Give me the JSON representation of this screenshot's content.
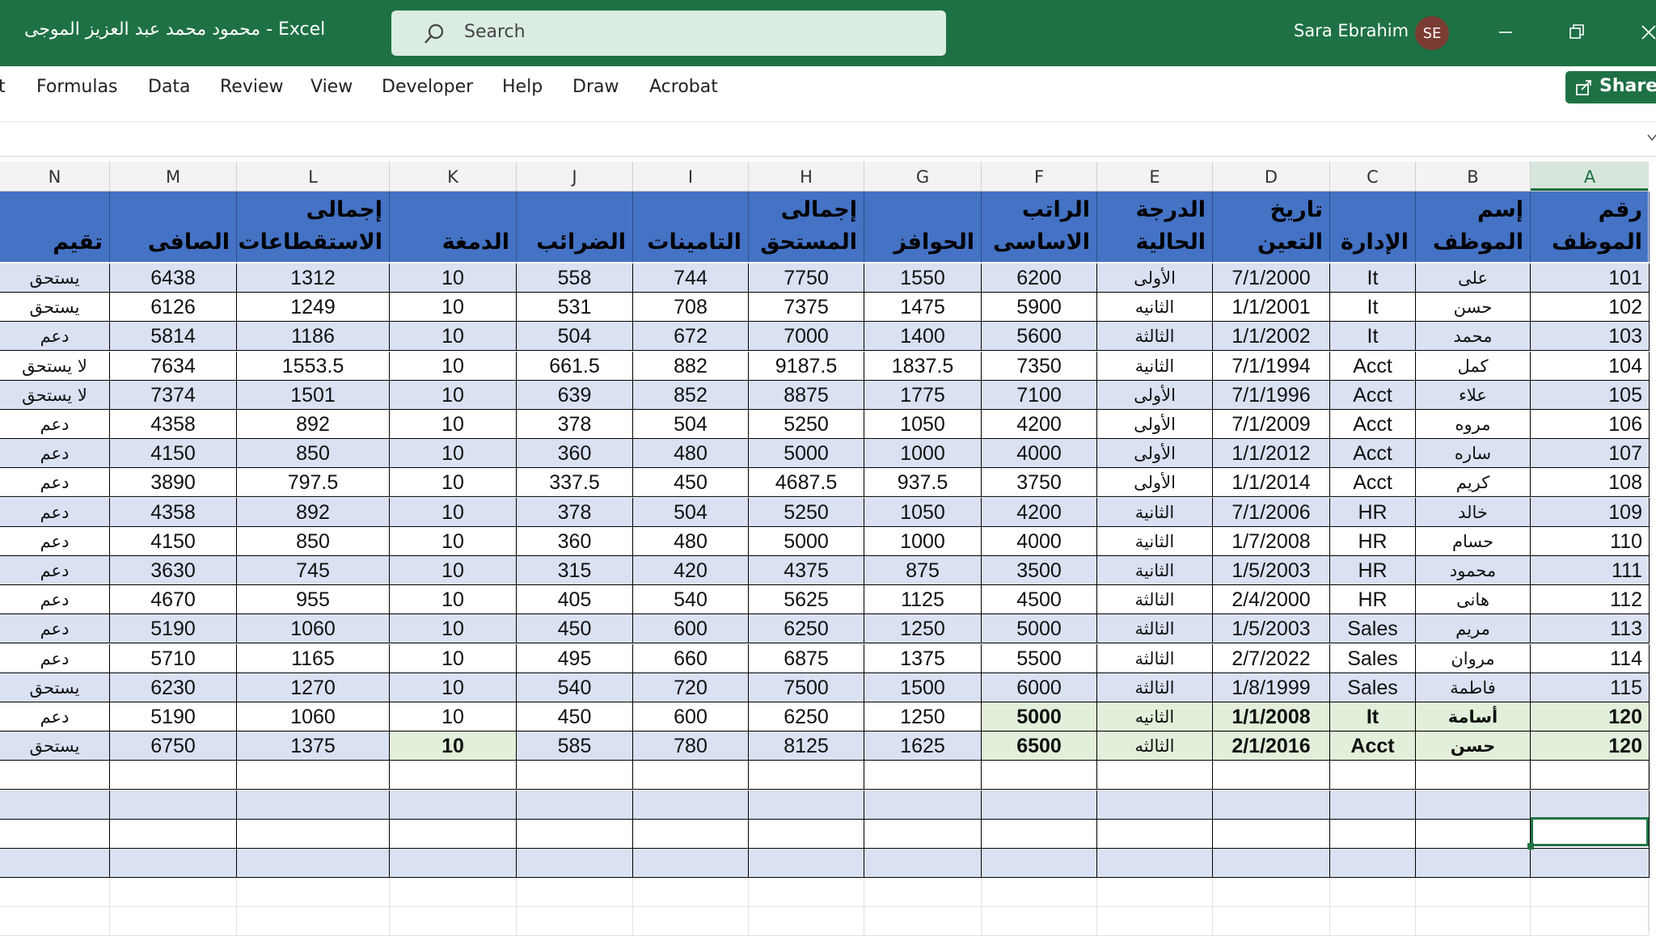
{
  "window": {
    "doc_title": "محمود محمد عبد العزيز الموجى  -  Excel",
    "search_placeholder": "Search",
    "user_name": "Sara Ebrahim",
    "user_initials": "SE"
  },
  "ribbon": {
    "tabs": [
      "t",
      "Formulas",
      "Data",
      "Review",
      "View",
      "Developer",
      "Help",
      "Draw",
      "Acrobat"
    ],
    "share_label": "Share"
  },
  "columns": [
    "N",
    "M",
    "L",
    "K",
    "J",
    "I",
    "H",
    "G",
    "F",
    "E",
    "D",
    "C",
    "B",
    "A"
  ],
  "selected_column": "A",
  "headers": {
    "A": [
      "رقم",
      "الموظف"
    ],
    "B": [
      "إسم",
      "الموظف"
    ],
    "C": [
      "",
      "الإدارة"
    ],
    "D": [
      "تاريخ",
      "التعين"
    ],
    "E": [
      "الدرجة",
      "الحالية"
    ],
    "F": [
      "الراتب",
      "الاساسى"
    ],
    "G": [
      "",
      "الحوافز"
    ],
    "H": [
      "إجمالى",
      "المستحق"
    ],
    "I": [
      "",
      "التامينات"
    ],
    "J": [
      "",
      "الضرائب"
    ],
    "K": [
      "",
      "الدمغة"
    ],
    "L": [
      "إجمالى",
      "الاستقطاعات"
    ],
    "M": [
      "",
      "الصافى"
    ],
    "N": [
      "",
      "تقيم"
    ]
  },
  "rows": [
    {
      "A": "101",
      "B": "على",
      "C": "It",
      "D": "7/1/2000",
      "E": "الأولى",
      "F": "6200",
      "G": "1550",
      "H": "7750",
      "I": "744",
      "J": "558",
      "K": "10",
      "L": "1312",
      "M": "6438",
      "N": "يستحق"
    },
    {
      "A": "102",
      "B": "حسن",
      "C": "It",
      "D": "1/1/2001",
      "E": "الثانيه",
      "F": "5900",
      "G": "1475",
      "H": "7375",
      "I": "708",
      "J": "531",
      "K": "10",
      "L": "1249",
      "M": "6126",
      "N": "يستحق"
    },
    {
      "A": "103",
      "B": "محمد",
      "C": "It",
      "D": "1/1/2002",
      "E": "الثالثة",
      "F": "5600",
      "G": "1400",
      "H": "7000",
      "I": "672",
      "J": "504",
      "K": "10",
      "L": "1186",
      "M": "5814",
      "N": "دعم"
    },
    {
      "A": "104",
      "B": "كمل",
      "C": "Acct",
      "D": "7/1/1994",
      "E": "الثانية",
      "F": "7350",
      "G": "1837.5",
      "H": "9187.5",
      "I": "882",
      "J": "661.5",
      "K": "10",
      "L": "1553.5",
      "M": "7634",
      "N": "لا يستحق"
    },
    {
      "A": "105",
      "B": "علاء",
      "C": "Acct",
      "D": "7/1/1996",
      "E": "الأولى",
      "F": "7100",
      "G": "1775",
      "H": "8875",
      "I": "852",
      "J": "639",
      "K": "10",
      "L": "1501",
      "M": "7374",
      "N": "لا يستحق"
    },
    {
      "A": "106",
      "B": "مروه",
      "C": "Acct",
      "D": "7/1/2009",
      "E": "الأولى",
      "F": "4200",
      "G": "1050",
      "H": "5250",
      "I": "504",
      "J": "378",
      "K": "10",
      "L": "892",
      "M": "4358",
      "N": "دعم"
    },
    {
      "A": "107",
      "B": "ساره",
      "C": "Acct",
      "D": "1/1/2012",
      "E": "الأولى",
      "F": "4000",
      "G": "1000",
      "H": "5000",
      "I": "480",
      "J": "360",
      "K": "10",
      "L": "850",
      "M": "4150",
      "N": "دعم"
    },
    {
      "A": "108",
      "B": "كريم",
      "C": "Acct",
      "D": "1/1/2014",
      "E": "الأولى",
      "F": "3750",
      "G": "937.5",
      "H": "4687.5",
      "I": "450",
      "J": "337.5",
      "K": "10",
      "L": "797.5",
      "M": "3890",
      "N": "دعم"
    },
    {
      "A": "109",
      "B": "خالد",
      "C": "HR",
      "D": "7/1/2006",
      "E": "الثانية",
      "F": "4200",
      "G": "1050",
      "H": "5250",
      "I": "504",
      "J": "378",
      "K": "10",
      "L": "892",
      "M": "4358",
      "N": "دعم"
    },
    {
      "A": "110",
      "B": "حسام",
      "C": "HR",
      "D": "1/7/2008",
      "E": "الثانية",
      "F": "4000",
      "G": "1000",
      "H": "5000",
      "I": "480",
      "J": "360",
      "K": "10",
      "L": "850",
      "M": "4150",
      "N": "دعم"
    },
    {
      "A": "111",
      "B": "محمود",
      "C": "HR",
      "D": "1/5/2003",
      "E": "الثانية",
      "F": "3500",
      "G": "875",
      "H": "4375",
      "I": "420",
      "J": "315",
      "K": "10",
      "L": "745",
      "M": "3630",
      "N": "دعم"
    },
    {
      "A": "112",
      "B": "هانى",
      "C": "HR",
      "D": "2/4/2000",
      "E": "الثالثة",
      "F": "4500",
      "G": "1125",
      "H": "5625",
      "I": "540",
      "J": "405",
      "K": "10",
      "L": "955",
      "M": "4670",
      "N": "دعم"
    },
    {
      "A": "113",
      "B": "مريم",
      "C": "Sales",
      "D": "1/5/2003",
      "E": "الثالثة",
      "F": "5000",
      "G": "1250",
      "H": "6250",
      "I": "600",
      "J": "450",
      "K": "10",
      "L": "1060",
      "M": "5190",
      "N": "دعم"
    },
    {
      "A": "114",
      "B": "مروان",
      "C": "Sales",
      "D": "2/7/2022",
      "E": "الثالثة",
      "F": "5500",
      "G": "1375",
      "H": "6875",
      "I": "660",
      "J": "495",
      "K": "10",
      "L": "1165",
      "M": "5710",
      "N": "دعم"
    },
    {
      "A": "115",
      "B": "فاطمة",
      "C": "Sales",
      "D": "1/8/1999",
      "E": "الثالثة",
      "F": "6000",
      "G": "1500",
      "H": "7500",
      "I": "720",
      "J": "540",
      "K": "10",
      "L": "1270",
      "M": "6230",
      "N": "يستحق"
    },
    {
      "A": "120",
      "B": "أسامة",
      "C": "It",
      "D": "1/1/2008",
      "E": "الثانيه",
      "F": "5000",
      "G": "1250",
      "H": "6250",
      "I": "600",
      "J": "450",
      "K": "10",
      "L": "1060",
      "M": "5190",
      "N": "دعم"
    },
    {
      "A": "120",
      "B": "حسن",
      "C": "Acct",
      "D": "2/1/2016",
      "E": "الثالثه",
      "F": "6500",
      "G": "1625",
      "H": "8125",
      "I": "780",
      "J": "585",
      "K": "10",
      "L": "1375",
      "M": "6750",
      "N": "يستحق"
    }
  ],
  "colors": {
    "title_bar": "#1e7145",
    "header_fill": "#4472c4",
    "band_fill": "#d9e1f2",
    "highlight_fill": "#e2efda"
  }
}
